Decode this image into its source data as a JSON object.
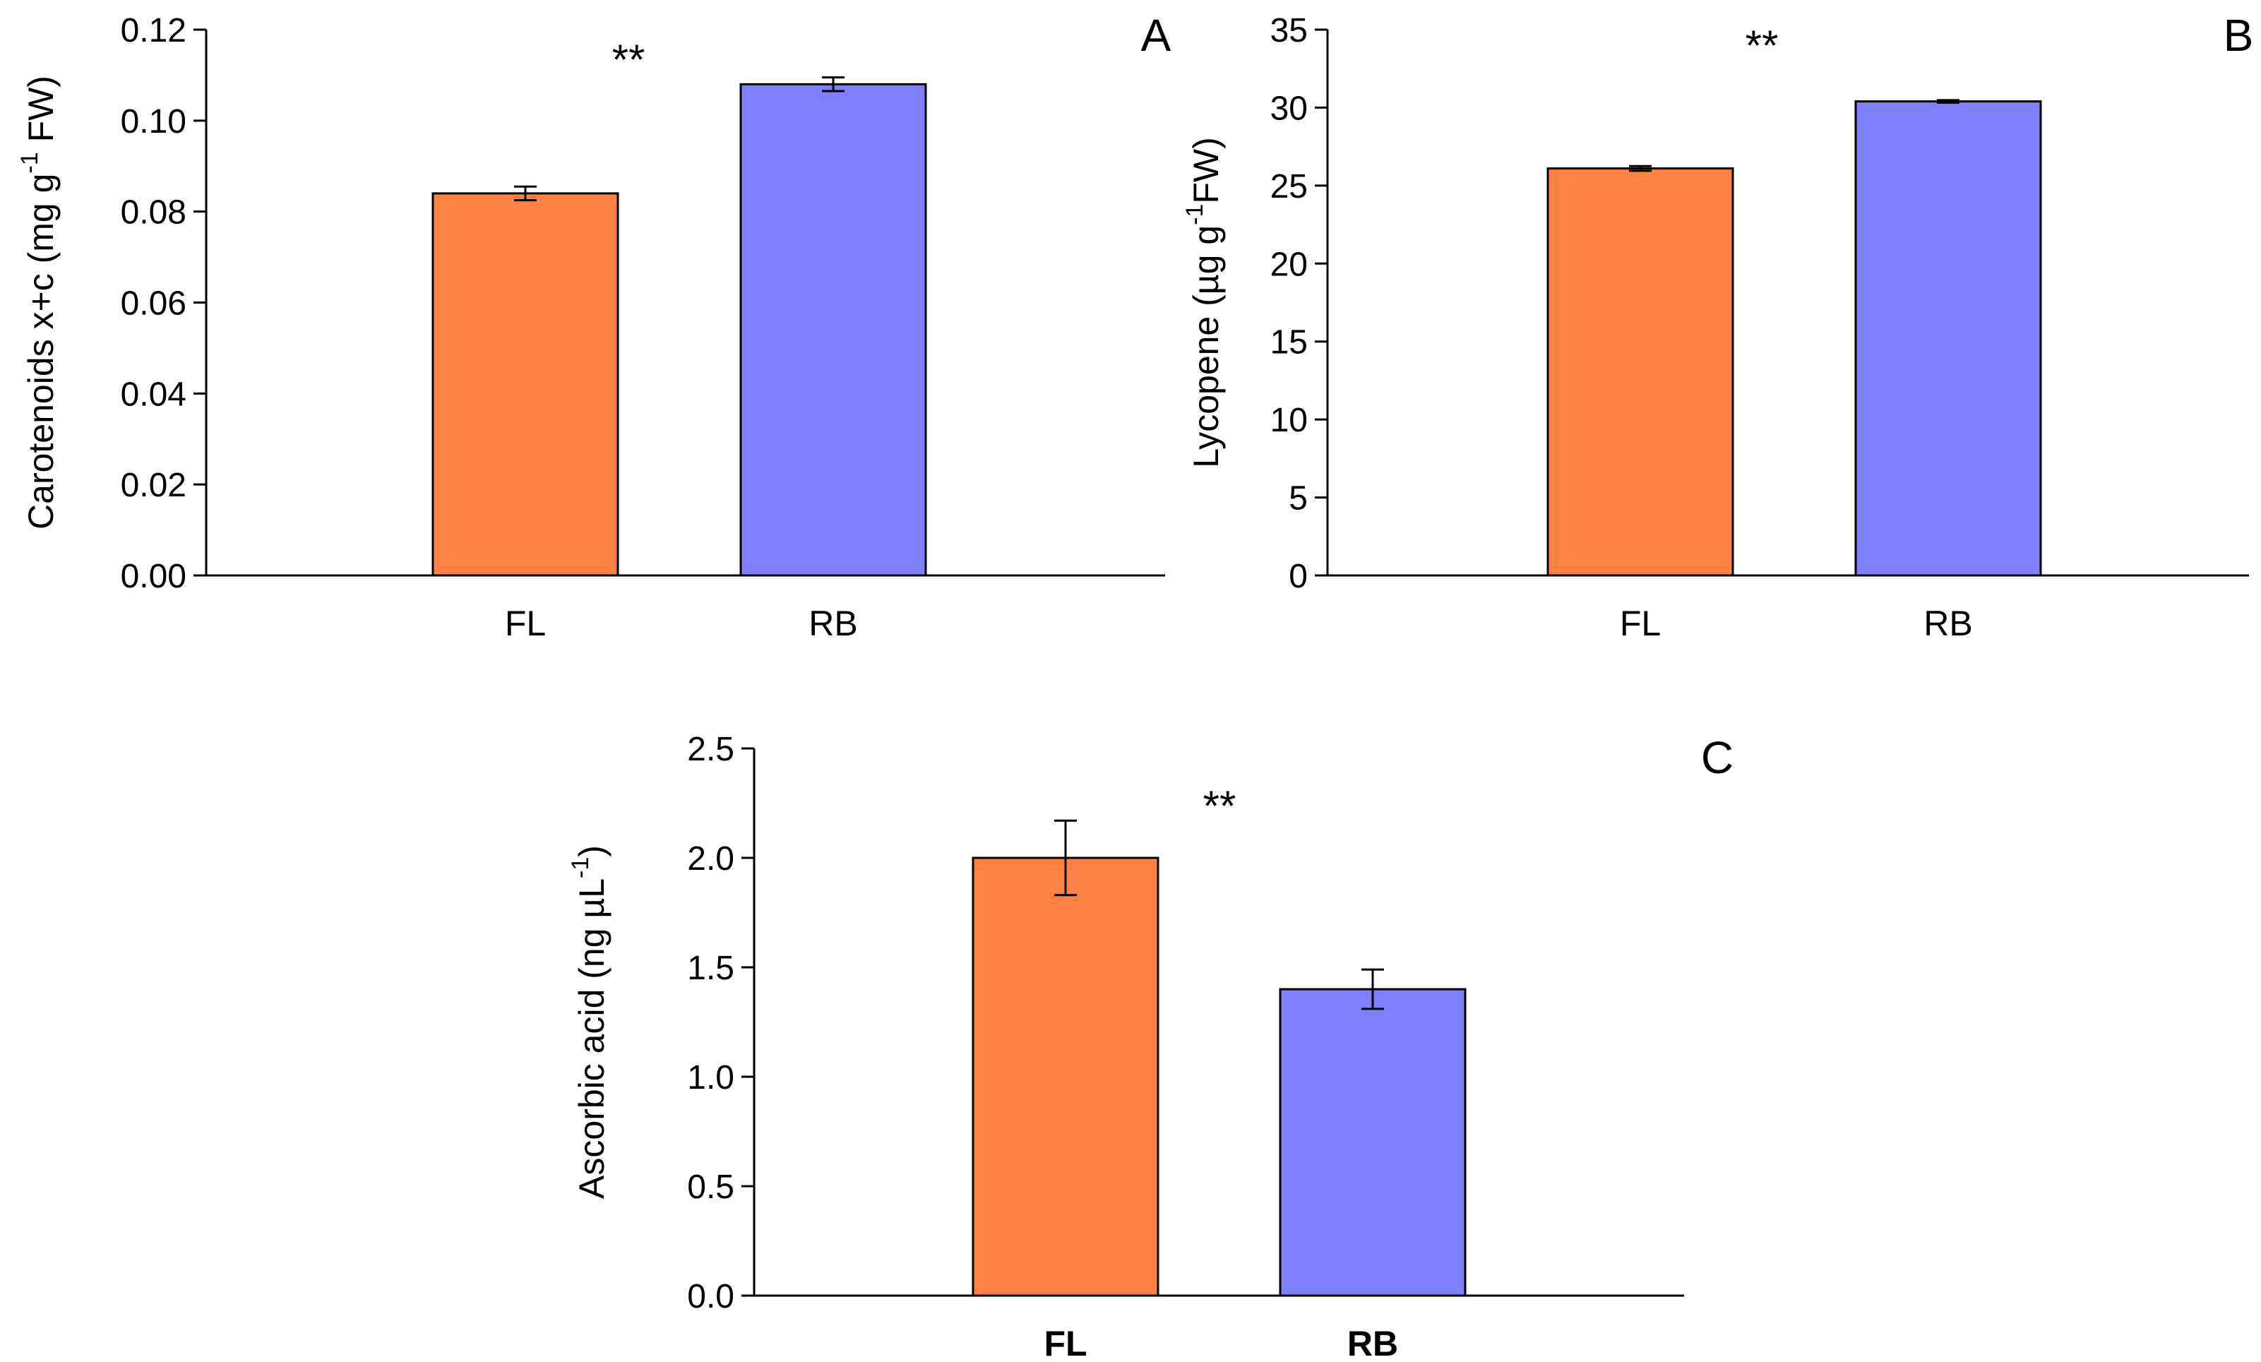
{
  "colors": {
    "FL": "#ff8243",
    "RB": "#8080ff",
    "axis": "#000000"
  },
  "chart_data": [
    {
      "panel": "A",
      "type": "bar",
      "categories": [
        "FL",
        "RB"
      ],
      "values": [
        0.084,
        0.108
      ],
      "errors": [
        0.0015,
        0.0015
      ],
      "ylim": [
        0,
        0.12
      ],
      "yticks": [
        "0.00",
        "0.02",
        "0.04",
        "0.06",
        "0.08",
        "0.10",
        "0.12"
      ],
      "ytick_values": [
        0,
        0.02,
        0.04,
        0.06,
        0.08,
        0.1,
        0.12
      ],
      "ylabel": {
        "pre": "Carotenoids x+c (mg g",
        "sup": "-1",
        "post": " FW)"
      },
      "significance": "**",
      "bold_categories": false,
      "grid": false
    },
    {
      "panel": "B",
      "type": "bar",
      "categories": [
        "FL",
        "RB"
      ],
      "values": [
        26.1,
        30.4
      ],
      "errors": [
        0.15,
        0.08
      ],
      "ylim": [
        0,
        35
      ],
      "yticks": [
        "0",
        "5",
        "10",
        "15",
        "20",
        "25",
        "30",
        "35"
      ],
      "ytick_values": [
        0,
        5,
        10,
        15,
        20,
        25,
        30,
        35
      ],
      "ylabel": {
        "pre": "Lycopene (µg g",
        "sup": "-1",
        "post": "FW)"
      },
      "significance": "**",
      "bold_categories": false,
      "grid": false
    },
    {
      "panel": "C",
      "type": "bar",
      "categories": [
        "FL",
        "RB"
      ],
      "values": [
        2.0,
        1.4
      ],
      "errors": [
        0.17,
        0.09
      ],
      "ylim": [
        0,
        2.5
      ],
      "yticks": [
        "0.0",
        "0.5",
        "1.0",
        "1.5",
        "2.0",
        "2.5"
      ],
      "ytick_values": [
        0,
        0.5,
        1.0,
        1.5,
        2.0,
        2.5
      ],
      "ylabel": {
        "pre": "Ascorbic acid (ng µL",
        "sup": "-1",
        "post": ")"
      },
      "significance": "**",
      "bold_categories": true,
      "grid": false
    }
  ]
}
